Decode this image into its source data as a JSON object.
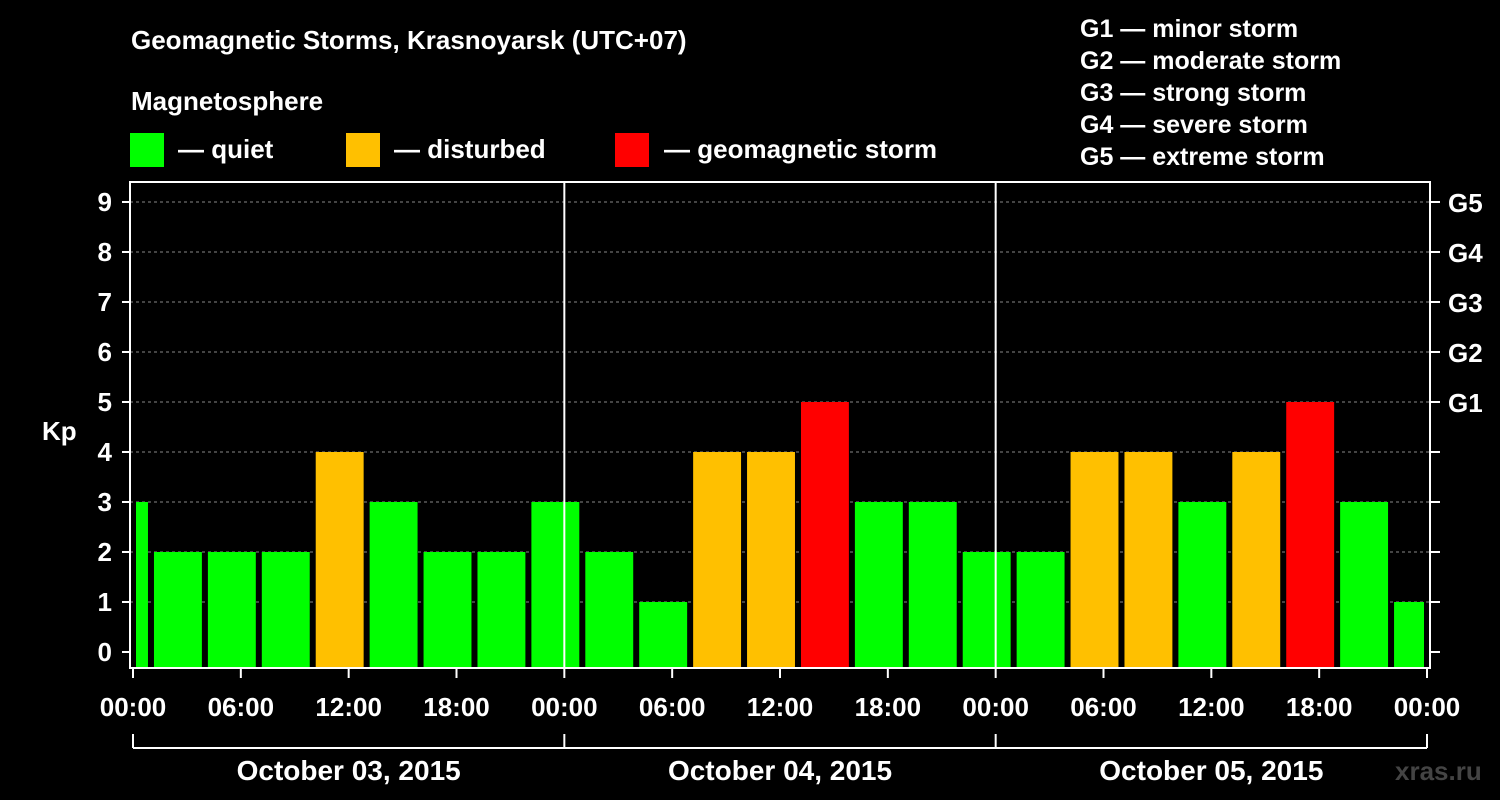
{
  "header": {
    "title": "Geomagnetic Storms, Krasnoyarsk (UTC+07)",
    "subtitle": "Magnetosphere",
    "legend": [
      {
        "label": "— quiet",
        "color": "#00ff00"
      },
      {
        "label": "— disturbed",
        "color": "#ffc000"
      },
      {
        "label": "— geomagnetic storm",
        "color": "#ff0000"
      }
    ],
    "storm_scale": [
      "G1 — minor storm",
      "G2 — moderate storm",
      "G3 — strong storm",
      "G4 — severe storm",
      "G5 — extreme storm"
    ]
  },
  "watermark": "xras.ru",
  "colors": {
    "quiet": "#00ff00",
    "disturbed": "#ffc000",
    "storm": "#ff0000",
    "background": "#000000",
    "axis": "#ffffff",
    "grid": "#888888"
  },
  "chart_data": {
    "type": "bar",
    "title": "Geomagnetic Storms, Krasnoyarsk (UTC+07)",
    "ylabel": "Kp",
    "ylim": [
      0,
      9
    ],
    "yticks": [
      "0",
      "1",
      "2",
      "3",
      "4",
      "5",
      "6",
      "7",
      "8",
      "9"
    ],
    "right_ticks": [
      {
        "kp": 5,
        "label": "G1"
      },
      {
        "kp": 6,
        "label": "G2"
      },
      {
        "kp": 7,
        "label": "G3"
      },
      {
        "kp": 8,
        "label": "G4"
      },
      {
        "kp": 9,
        "label": "G5"
      }
    ],
    "x_range_hours": [
      0,
      72
    ],
    "x_tick_labels": [
      "00:00",
      "06:00",
      "12:00",
      "18:00",
      "00:00",
      "06:00",
      "12:00",
      "18:00",
      "00:00",
      "06:00",
      "12:00",
      "18:00",
      "00:00"
    ],
    "x_tick_hours": [
      0,
      6,
      12,
      18,
      24,
      30,
      36,
      42,
      48,
      54,
      60,
      66,
      72
    ],
    "days": [
      "October 03, 2015",
      "October 04, 2015",
      "October 05, 2015"
    ],
    "day_boundary_hours": [
      24,
      48
    ],
    "bars": [
      {
        "start": 0,
        "end": 1,
        "kp": 3,
        "level": "quiet"
      },
      {
        "start": 1,
        "end": 4,
        "kp": 2,
        "level": "quiet"
      },
      {
        "start": 4,
        "end": 7,
        "kp": 2,
        "level": "quiet"
      },
      {
        "start": 7,
        "end": 10,
        "kp": 2,
        "level": "quiet"
      },
      {
        "start": 10,
        "end": 13,
        "kp": 4,
        "level": "disturbed"
      },
      {
        "start": 13,
        "end": 16,
        "kp": 3,
        "level": "quiet"
      },
      {
        "start": 16,
        "end": 19,
        "kp": 2,
        "level": "quiet"
      },
      {
        "start": 19,
        "end": 22,
        "kp": 2,
        "level": "quiet"
      },
      {
        "start": 22,
        "end": 25,
        "kp": 3,
        "level": "quiet"
      },
      {
        "start": 25,
        "end": 28,
        "kp": 2,
        "level": "quiet"
      },
      {
        "start": 28,
        "end": 31,
        "kp": 1,
        "level": "quiet"
      },
      {
        "start": 31,
        "end": 34,
        "kp": 4,
        "level": "disturbed"
      },
      {
        "start": 34,
        "end": 37,
        "kp": 4,
        "level": "disturbed"
      },
      {
        "start": 37,
        "end": 40,
        "kp": 5,
        "level": "storm"
      },
      {
        "start": 40,
        "end": 43,
        "kp": 3,
        "level": "quiet"
      },
      {
        "start": 43,
        "end": 46,
        "kp": 3,
        "level": "quiet"
      },
      {
        "start": 46,
        "end": 49,
        "kp": 2,
        "level": "quiet"
      },
      {
        "start": 49,
        "end": 52,
        "kp": 2,
        "level": "quiet"
      },
      {
        "start": 52,
        "end": 55,
        "kp": 4,
        "level": "disturbed"
      },
      {
        "start": 55,
        "end": 58,
        "kp": 4,
        "level": "disturbed"
      },
      {
        "start": 58,
        "end": 61,
        "kp": 3,
        "level": "quiet"
      },
      {
        "start": 61,
        "end": 64,
        "kp": 4,
        "level": "disturbed"
      },
      {
        "start": 64,
        "end": 67,
        "kp": 5,
        "level": "storm"
      },
      {
        "start": 67,
        "end": 70,
        "kp": 3,
        "level": "quiet"
      },
      {
        "start": 70,
        "end": 72,
        "kp": 1,
        "level": "quiet"
      }
    ]
  }
}
